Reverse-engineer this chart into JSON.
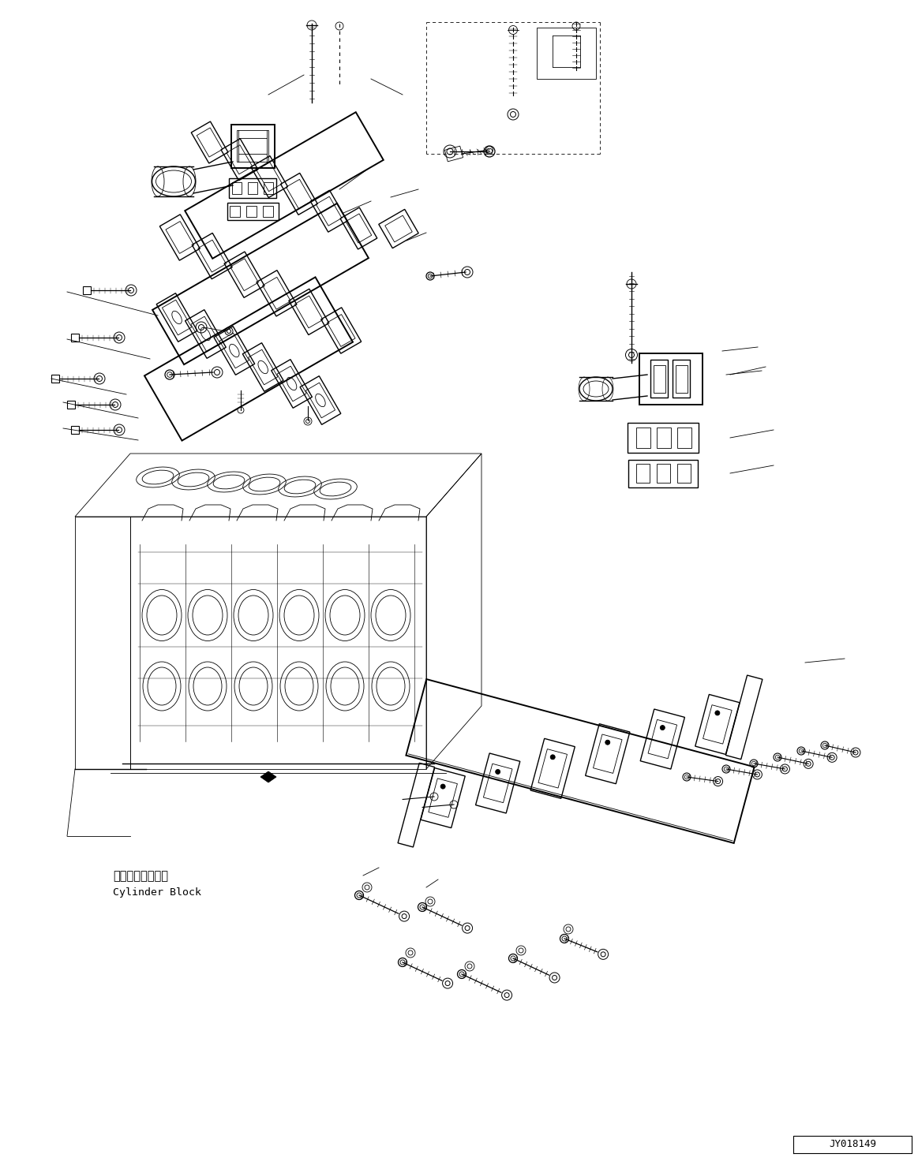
{
  "background_color": "#ffffff",
  "line_color": "#000000",
  "image_id": "JY018149",
  "label_cylinder_block_jp": "シリンダブロック",
  "label_cylinder_block_en": "Cylinder Block",
  "figsize": [
    11.63,
    14.77
  ],
  "dpi": 100
}
